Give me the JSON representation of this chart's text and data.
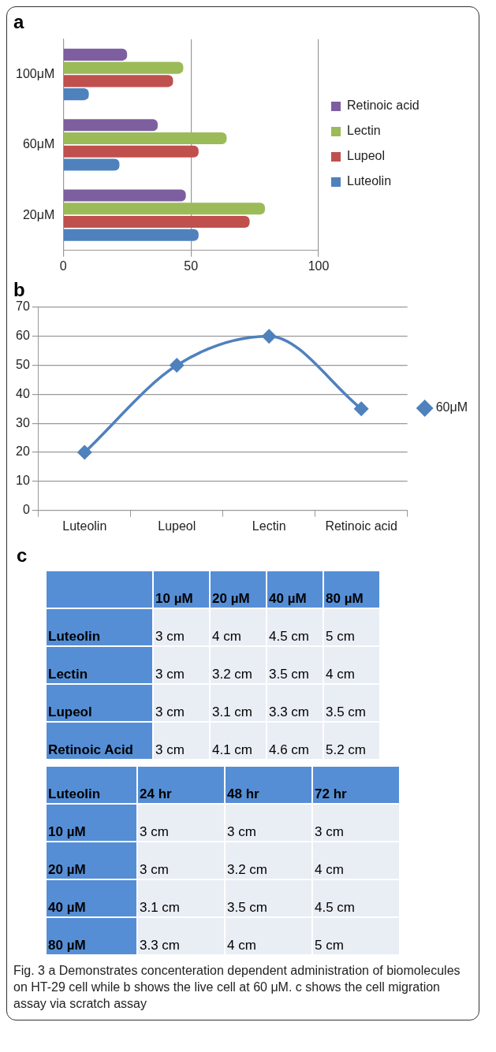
{
  "chart_data": [
    {
      "type": "bar",
      "title": "a",
      "orientation": "horizontal",
      "categories": [
        "100μM",
        "60μM",
        "20μM"
      ],
      "series": [
        {
          "name": "Retinoic acid",
          "color": "#7d5fa0",
          "values": [
            25,
            37,
            48
          ]
        },
        {
          "name": "Lectin",
          "color": "#9bbb59",
          "values": [
            47,
            64,
            79
          ]
        },
        {
          "name": "Lupeol",
          "color": "#c0504d",
          "values": [
            43,
            53,
            73
          ]
        },
        {
          "name": "Luteolin",
          "color": "#4f81bd",
          "values": [
            10,
            22,
            53
          ]
        }
      ],
      "xlim": [
        0,
        100
      ],
      "xticks": [
        0,
        50,
        100
      ],
      "grid": "x",
      "legend": "right"
    },
    {
      "type": "line",
      "title": "b",
      "categories": [
        "Luteolin",
        "Lupeol",
        "Lectin",
        "Retinoic acid"
      ],
      "series": [
        {
          "name": "60μM",
          "color": "#4f81bd",
          "values": [
            20,
            50,
            60,
            35
          ]
        }
      ],
      "ylim": [
        0,
        70
      ],
      "yticks": [
        0,
        10,
        20,
        30,
        40,
        50,
        60,
        70
      ],
      "grid": "y",
      "legend": "right",
      "marker": "diamond"
    },
    {
      "type": "other",
      "title": "c",
      "categories": [
        "10 µM",
        "20 µM",
        "40 µM",
        "80 µM"
      ],
      "y_categories": [
        "Luteolin",
        "Lectin",
        "Lupeol",
        "Retinoic Acid"
      ],
      "cell_labels": [
        [
          "3 cm",
          "4 cm",
          "4.5 cm",
          "5 cm"
        ],
        [
          "3 cm",
          "3.2 cm",
          "3.5 cm",
          "4 cm"
        ],
        [
          "3 cm",
          "3.1 cm",
          "3.3 cm",
          "3.5 cm"
        ],
        [
          "3 cm",
          "4.1 cm",
          "4.6 cm",
          "5.2 cm"
        ]
      ]
    },
    {
      "type": "other",
      "ylabel": "Luteolin",
      "categories": [
        "24 hr",
        "48 hr",
        "72 hr"
      ],
      "y_categories": [
        "10 µM",
        "20 µM",
        "40 µM",
        "80 µM"
      ],
      "cell_labels": [
        [
          "3 cm",
          "3 cm",
          "3 cm"
        ],
        [
          "3 cm",
          "3.2 cm",
          "4 cm"
        ],
        [
          "3.1 cm",
          "3.5 cm",
          "4.5 cm"
        ],
        [
          "3.3 cm",
          "4 cm",
          "5 cm"
        ]
      ],
      "annotations": [
        "Fig. 3 a Demonstrates concenteration dependent administration of biomolecules on HT-29 cell while b shows the live cell at 60 μM. c shows the cell migration assay via scratch assay"
      ]
    }
  ]
}
